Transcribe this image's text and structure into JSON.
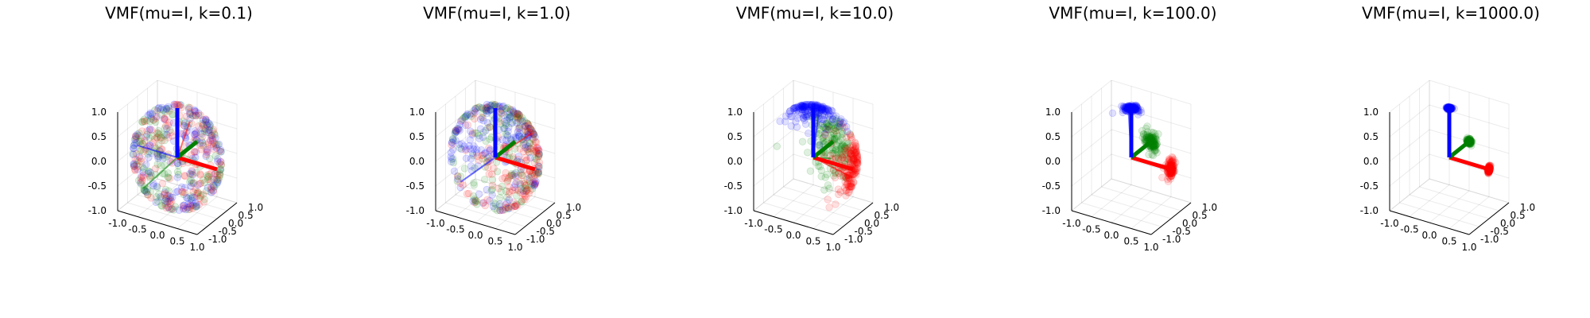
{
  "chart_data": [
    {
      "type": "scatter",
      "title": "VMF(mu=I, k=0.1)",
      "kappa": 0.1,
      "xlim": [
        -1,
        1
      ],
      "ylim": [
        -1,
        1
      ],
      "zlim": [
        -1,
        1
      ],
      "xticks": [
        "-1.0",
        "-0.5",
        "0.0",
        "0.5",
        "1.0"
      ],
      "yticks": [
        "-1.0",
        "-0.5",
        "0.0",
        "0.5",
        "1.0"
      ],
      "zticks": [
        "-1.0",
        "-0.5",
        "0.0",
        "0.5",
        "1.0"
      ],
      "series": [
        {
          "color": "#ff0000"
        },
        {
          "color": "#008000"
        },
        {
          "color": "#0000ff"
        }
      ],
      "grid": true,
      "legend": "none"
    },
    {
      "type": "scatter",
      "title": "VMF(mu=I, k=1.0)",
      "kappa": 1.0,
      "xlim": [
        -1,
        1
      ],
      "ylim": [
        -1,
        1
      ],
      "zlim": [
        -1,
        1
      ],
      "xticks": [
        "-1.0",
        "-0.5",
        "0.0",
        "0.5",
        "1.0"
      ],
      "yticks": [
        "-1.0",
        "-0.5",
        "0.0",
        "0.5",
        "1.0"
      ],
      "zticks": [
        "-1.0",
        "-0.5",
        "0.0",
        "0.5",
        "1.0"
      ],
      "series": [
        {
          "color": "#ff0000"
        },
        {
          "color": "#008000"
        },
        {
          "color": "#0000ff"
        }
      ],
      "grid": true,
      "legend": "none"
    },
    {
      "type": "scatter",
      "title": "VMF(mu=I, k=10.0)",
      "kappa": 10.0,
      "xlim": [
        -1,
        1
      ],
      "ylim": [
        -1,
        1
      ],
      "zlim": [
        -1,
        1
      ],
      "xticks": [
        "-1.0",
        "-0.5",
        "0.0",
        "0.5",
        "1.0"
      ],
      "yticks": [
        "-1.0",
        "-0.5",
        "0.0",
        "0.5",
        "1.0"
      ],
      "zticks": [
        "-1.0",
        "-0.5",
        "0.0",
        "0.5",
        "1.0"
      ],
      "series": [
        {
          "color": "#ff0000"
        },
        {
          "color": "#008000"
        },
        {
          "color": "#0000ff"
        }
      ],
      "grid": true,
      "legend": "none"
    },
    {
      "type": "scatter",
      "title": "VMF(mu=I, k=100.0)",
      "kappa": 100.0,
      "xlim": [
        -1,
        1
      ],
      "ylim": [
        -1,
        1
      ],
      "zlim": [
        -1,
        1
      ],
      "xticks": [
        "-1.0",
        "-0.5",
        "0.0",
        "0.5",
        "1.0"
      ],
      "yticks": [
        "-1.0",
        "-0.5",
        "0.0",
        "0.5",
        "1.0"
      ],
      "zticks": [
        "-1.0",
        "-0.5",
        "0.0",
        "0.5",
        "1.0"
      ],
      "series": [
        {
          "color": "#ff0000"
        },
        {
          "color": "#008000"
        },
        {
          "color": "#0000ff"
        }
      ],
      "grid": true,
      "legend": "none"
    },
    {
      "type": "scatter",
      "title": "VMF(mu=I, k=1000.0)",
      "kappa": 1000.0,
      "xlim": [
        -1,
        1
      ],
      "ylim": [
        -1,
        1
      ],
      "zlim": [
        -1,
        1
      ],
      "xticks": [
        "-1.0",
        "-0.5",
        "0.0",
        "0.5",
        "1.0"
      ],
      "yticks": [
        "-1.0",
        "-0.5",
        "0.0",
        "0.5",
        "1.0"
      ],
      "zticks": [
        "-1.0",
        "-0.5",
        "0.0",
        "0.5",
        "1.0"
      ],
      "series": [
        {
          "color": "#ff0000"
        },
        {
          "color": "#008000"
        },
        {
          "color": "#0000ff"
        }
      ],
      "grid": true,
      "legend": "none"
    }
  ]
}
